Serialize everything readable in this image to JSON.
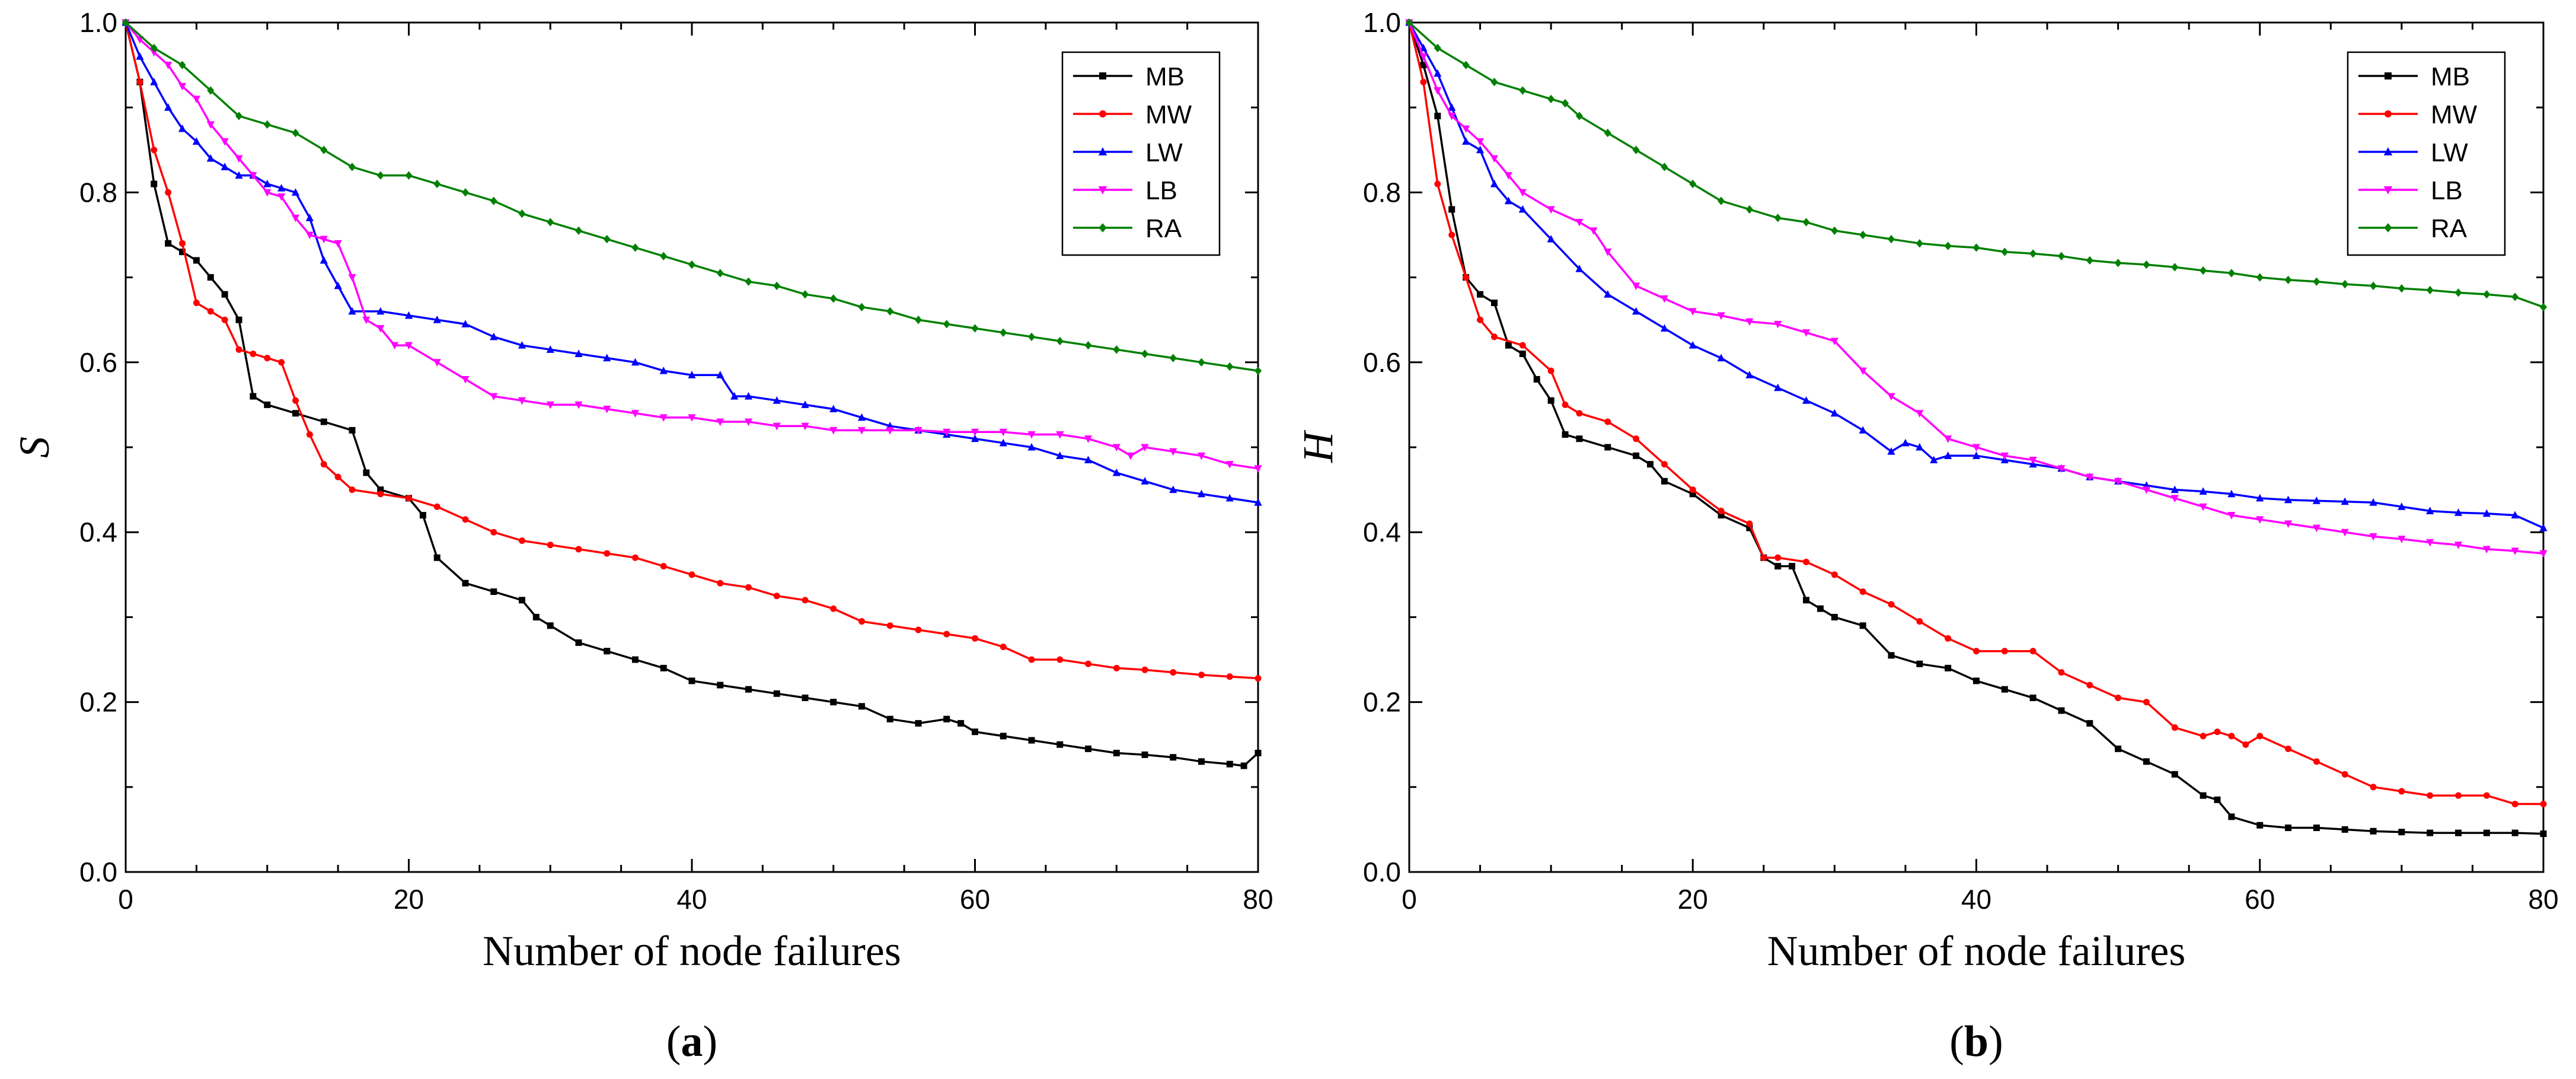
{
  "chart_data": [
    {
      "type": "line",
      "panel": "a",
      "panel_label": "a",
      "xlabel": "Number of node failures",
      "ylabel": "S",
      "xlim": [
        0,
        80
      ],
      "ylim": [
        0,
        1.0
      ],
      "xticks": [
        0,
        20,
        40,
        60,
        80
      ],
      "yticks": [
        0.0,
        0.2,
        0.4,
        0.6,
        0.8,
        1.0
      ],
      "ytick_labels": [
        "0.0",
        "0.2",
        "0.4",
        "0.6",
        "0.8",
        "1.0"
      ],
      "legend_position": "top-right",
      "series": [
        {
          "name": "MB",
          "color": "#000000",
          "marker": "square",
          "x": [
            0,
            1,
            2,
            3,
            4,
            5,
            6,
            7,
            8,
            9,
            10,
            12,
            14,
            16,
            17,
            18,
            20,
            21,
            22,
            24,
            26,
            28,
            29,
            30,
            32,
            34,
            36,
            38,
            40,
            42,
            44,
            46,
            48,
            50,
            52,
            54,
            56,
            58,
            59,
            60,
            62,
            64,
            66,
            68,
            70,
            72,
            74,
            76,
            78,
            79,
            80
          ],
          "y": [
            1.0,
            0.93,
            0.81,
            0.74,
            0.73,
            0.72,
            0.7,
            0.68,
            0.65,
            0.56,
            0.55,
            0.54,
            0.53,
            0.52,
            0.47,
            0.45,
            0.44,
            0.42,
            0.37,
            0.34,
            0.33,
            0.32,
            0.3,
            0.29,
            0.27,
            0.26,
            0.25,
            0.24,
            0.225,
            0.22,
            0.215,
            0.21,
            0.205,
            0.2,
            0.195,
            0.18,
            0.175,
            0.18,
            0.175,
            0.165,
            0.16,
            0.155,
            0.15,
            0.145,
            0.14,
            0.138,
            0.135,
            0.13,
            0.127,
            0.125,
            0.14
          ]
        },
        {
          "name": "MW",
          "color": "#ff0000",
          "marker": "circle",
          "x": [
            0,
            1,
            2,
            3,
            4,
            5,
            6,
            7,
            8,
            9,
            10,
            11,
            12,
            13,
            14,
            15,
            16,
            18,
            20,
            22,
            24,
            26,
            28,
            30,
            32,
            34,
            36,
            38,
            40,
            42,
            44,
            46,
            48,
            50,
            52,
            54,
            56,
            58,
            60,
            62,
            64,
            66,
            68,
            70,
            72,
            74,
            76,
            78,
            80
          ],
          "y": [
            1.0,
            0.93,
            0.85,
            0.8,
            0.74,
            0.67,
            0.66,
            0.65,
            0.615,
            0.61,
            0.605,
            0.6,
            0.555,
            0.515,
            0.48,
            0.465,
            0.45,
            0.445,
            0.44,
            0.43,
            0.415,
            0.4,
            0.39,
            0.385,
            0.38,
            0.375,
            0.37,
            0.36,
            0.35,
            0.34,
            0.335,
            0.325,
            0.32,
            0.31,
            0.295,
            0.29,
            0.285,
            0.28,
            0.275,
            0.265,
            0.25,
            0.25,
            0.245,
            0.24,
            0.238,
            0.235,
            0.232,
            0.23,
            0.228
          ]
        },
        {
          "name": "LW",
          "color": "#0000ff",
          "marker": "triangle",
          "x": [
            0,
            1,
            2,
            3,
            4,
            5,
            6,
            7,
            8,
            9,
            10,
            11,
            12,
            13,
            14,
            15,
            16,
            18,
            20,
            22,
            24,
            26,
            28,
            30,
            32,
            34,
            36,
            38,
            40,
            42,
            43,
            44,
            46,
            48,
            50,
            52,
            54,
            56,
            58,
            60,
            62,
            64,
            66,
            68,
            70,
            72,
            74,
            76,
            78,
            80
          ],
          "y": [
            1.0,
            0.96,
            0.93,
            0.9,
            0.875,
            0.86,
            0.84,
            0.83,
            0.82,
            0.82,
            0.81,
            0.805,
            0.8,
            0.77,
            0.72,
            0.69,
            0.66,
            0.66,
            0.655,
            0.65,
            0.645,
            0.63,
            0.62,
            0.615,
            0.61,
            0.605,
            0.6,
            0.59,
            0.585,
            0.585,
            0.56,
            0.56,
            0.555,
            0.55,
            0.545,
            0.535,
            0.525,
            0.52,
            0.515,
            0.51,
            0.505,
            0.5,
            0.49,
            0.485,
            0.47,
            0.46,
            0.45,
            0.445,
            0.44,
            0.435
          ]
        },
        {
          "name": "LB",
          "color": "#ff00ff",
          "marker": "triangle-down",
          "x": [
            0,
            1,
            2,
            3,
            4,
            5,
            6,
            7,
            8,
            9,
            10,
            11,
            12,
            13,
            14,
            15,
            16,
            17,
            18,
            19,
            20,
            22,
            24,
            26,
            28,
            30,
            32,
            34,
            36,
            38,
            40,
            42,
            44,
            46,
            48,
            50,
            52,
            54,
            56,
            58,
            60,
            62,
            64,
            66,
            68,
            70,
            71,
            72,
            74,
            76,
            78,
            80
          ],
          "y": [
            1.0,
            0.98,
            0.965,
            0.95,
            0.925,
            0.91,
            0.88,
            0.86,
            0.84,
            0.82,
            0.8,
            0.795,
            0.77,
            0.75,
            0.745,
            0.74,
            0.7,
            0.65,
            0.64,
            0.62,
            0.62,
            0.6,
            0.58,
            0.56,
            0.555,
            0.55,
            0.55,
            0.545,
            0.54,
            0.535,
            0.535,
            0.53,
            0.53,
            0.525,
            0.525,
            0.52,
            0.52,
            0.52,
            0.52,
            0.518,
            0.518,
            0.518,
            0.515,
            0.515,
            0.51,
            0.5,
            0.49,
            0.5,
            0.495,
            0.49,
            0.48,
            0.475
          ]
        },
        {
          "name": "RA",
          "color": "#008000",
          "marker": "diamond",
          "x": [
            0,
            2,
            4,
            6,
            8,
            10,
            12,
            14,
            16,
            18,
            20,
            22,
            24,
            26,
            28,
            30,
            32,
            34,
            36,
            38,
            40,
            42,
            44,
            46,
            48,
            50,
            52,
            54,
            56,
            58,
            60,
            62,
            64,
            66,
            68,
            70,
            72,
            74,
            76,
            78,
            80
          ],
          "y": [
            1.0,
            0.97,
            0.95,
            0.92,
            0.89,
            0.88,
            0.87,
            0.85,
            0.83,
            0.82,
            0.82,
            0.81,
            0.8,
            0.79,
            0.775,
            0.765,
            0.755,
            0.745,
            0.735,
            0.725,
            0.715,
            0.705,
            0.695,
            0.69,
            0.68,
            0.675,
            0.665,
            0.66,
            0.65,
            0.645,
            0.64,
            0.635,
            0.63,
            0.625,
            0.62,
            0.615,
            0.61,
            0.605,
            0.6,
            0.595,
            0.59
          ]
        }
      ]
    },
    {
      "type": "line",
      "panel": "b",
      "panel_label": "b",
      "xlabel": "Number of node failures",
      "ylabel": "H",
      "xlim": [
        0,
        80
      ],
      "ylim": [
        0,
        1.0
      ],
      "xticks": [
        0,
        20,
        40,
        60,
        80
      ],
      "yticks": [
        0.0,
        0.2,
        0.4,
        0.6,
        0.8,
        1.0
      ],
      "ytick_labels": [
        "0.0",
        "0.2",
        "0.4",
        "0.6",
        "0.8",
        "1.0"
      ],
      "legend_position": "top-right",
      "series": [
        {
          "name": "MB",
          "color": "#000000",
          "marker": "square",
          "x": [
            0,
            1,
            2,
            3,
            4,
            5,
            6,
            7,
            8,
            9,
            10,
            11,
            12,
            14,
            16,
            17,
            18,
            20,
            22,
            24,
            25,
            26,
            27,
            28,
            29,
            30,
            32,
            34,
            36,
            38,
            40,
            42,
            44,
            46,
            48,
            50,
            52,
            54,
            56,
            57,
            58,
            60,
            62,
            64,
            66,
            68,
            70,
            72,
            74,
            76,
            78,
            80
          ],
          "y": [
            1.0,
            0.95,
            0.89,
            0.78,
            0.7,
            0.68,
            0.67,
            0.62,
            0.61,
            0.58,
            0.555,
            0.515,
            0.51,
            0.5,
            0.49,
            0.48,
            0.46,
            0.445,
            0.42,
            0.405,
            0.37,
            0.36,
            0.36,
            0.32,
            0.31,
            0.3,
            0.29,
            0.255,
            0.245,
            0.24,
            0.225,
            0.215,
            0.205,
            0.19,
            0.175,
            0.145,
            0.13,
            0.115,
            0.09,
            0.085,
            0.065,
            0.055,
            0.052,
            0.052,
            0.05,
            0.048,
            0.047,
            0.046,
            0.046,
            0.046,
            0.046,
            0.045
          ]
        },
        {
          "name": "MW",
          "color": "#ff0000",
          "marker": "circle",
          "x": [
            0,
            1,
            2,
            3,
            4,
            5,
            6,
            8,
            10,
            11,
            12,
            14,
            16,
            18,
            20,
            22,
            24,
            25,
            26,
            28,
            30,
            32,
            34,
            36,
            38,
            40,
            42,
            44,
            46,
            48,
            50,
            52,
            54,
            56,
            57,
            58,
            59,
            60,
            62,
            64,
            66,
            68,
            70,
            72,
            74,
            76,
            78,
            80
          ],
          "y": [
            1.0,
            0.93,
            0.81,
            0.75,
            0.7,
            0.65,
            0.63,
            0.62,
            0.59,
            0.55,
            0.54,
            0.53,
            0.51,
            0.48,
            0.45,
            0.425,
            0.41,
            0.37,
            0.37,
            0.365,
            0.35,
            0.33,
            0.315,
            0.295,
            0.275,
            0.26,
            0.26,
            0.26,
            0.235,
            0.22,
            0.205,
            0.2,
            0.17,
            0.16,
            0.165,
            0.16,
            0.15,
            0.16,
            0.145,
            0.13,
            0.115,
            0.1,
            0.095,
            0.09,
            0.09,
            0.09,
            0.08,
            0.08
          ]
        },
        {
          "name": "LW",
          "color": "#0000ff",
          "marker": "triangle",
          "x": [
            0,
            1,
            2,
            3,
            4,
            5,
            6,
            7,
            8,
            10,
            12,
            14,
            16,
            18,
            20,
            22,
            24,
            26,
            28,
            30,
            32,
            34,
            35,
            36,
            37,
            38,
            40,
            42,
            44,
            46,
            48,
            50,
            52,
            54,
            56,
            58,
            60,
            62,
            64,
            66,
            68,
            70,
            72,
            74,
            76,
            78,
            80
          ],
          "y": [
            1.0,
            0.97,
            0.94,
            0.9,
            0.86,
            0.85,
            0.81,
            0.79,
            0.78,
            0.745,
            0.71,
            0.68,
            0.66,
            0.64,
            0.62,
            0.605,
            0.585,
            0.57,
            0.555,
            0.54,
            0.52,
            0.495,
            0.505,
            0.5,
            0.485,
            0.49,
            0.49,
            0.485,
            0.48,
            0.475,
            0.465,
            0.46,
            0.455,
            0.45,
            0.448,
            0.445,
            0.44,
            0.438,
            0.437,
            0.436,
            0.435,
            0.43,
            0.425,
            0.423,
            0.422,
            0.42,
            0.405
          ]
        },
        {
          "name": "LB",
          "color": "#ff00ff",
          "marker": "triangle-down",
          "x": [
            0,
            1,
            2,
            3,
            4,
            5,
            6,
            7,
            8,
            10,
            12,
            13,
            14,
            16,
            18,
            20,
            22,
            24,
            26,
            28,
            30,
            32,
            34,
            36,
            38,
            40,
            42,
            44,
            46,
            48,
            50,
            52,
            54,
            56,
            58,
            60,
            62,
            64,
            66,
            68,
            70,
            72,
            74,
            76,
            78,
            80
          ],
          "y": [
            1.0,
            0.96,
            0.92,
            0.89,
            0.875,
            0.86,
            0.84,
            0.82,
            0.8,
            0.78,
            0.765,
            0.755,
            0.73,
            0.69,
            0.675,
            0.66,
            0.655,
            0.648,
            0.645,
            0.635,
            0.625,
            0.59,
            0.56,
            0.54,
            0.51,
            0.5,
            0.49,
            0.485,
            0.475,
            0.465,
            0.46,
            0.45,
            0.44,
            0.43,
            0.42,
            0.415,
            0.41,
            0.405,
            0.4,
            0.395,
            0.392,
            0.388,
            0.385,
            0.38,
            0.378,
            0.375
          ]
        },
        {
          "name": "RA",
          "color": "#008000",
          "marker": "diamond",
          "x": [
            0,
            2,
            4,
            6,
            8,
            10,
            11,
            12,
            14,
            16,
            18,
            20,
            22,
            24,
            26,
            28,
            30,
            32,
            34,
            36,
            38,
            40,
            42,
            44,
            46,
            48,
            50,
            52,
            54,
            56,
            58,
            60,
            62,
            64,
            66,
            68,
            70,
            72,
            74,
            76,
            78,
            80
          ],
          "y": [
            1.0,
            0.97,
            0.95,
            0.93,
            0.92,
            0.91,
            0.905,
            0.89,
            0.87,
            0.85,
            0.83,
            0.81,
            0.79,
            0.78,
            0.77,
            0.765,
            0.755,
            0.75,
            0.745,
            0.74,
            0.737,
            0.735,
            0.73,
            0.728,
            0.725,
            0.72,
            0.717,
            0.715,
            0.712,
            0.708,
            0.705,
            0.7,
            0.697,
            0.695,
            0.692,
            0.69,
            0.687,
            0.685,
            0.682,
            0.68,
            0.677,
            0.665
          ]
        }
      ]
    }
  ]
}
